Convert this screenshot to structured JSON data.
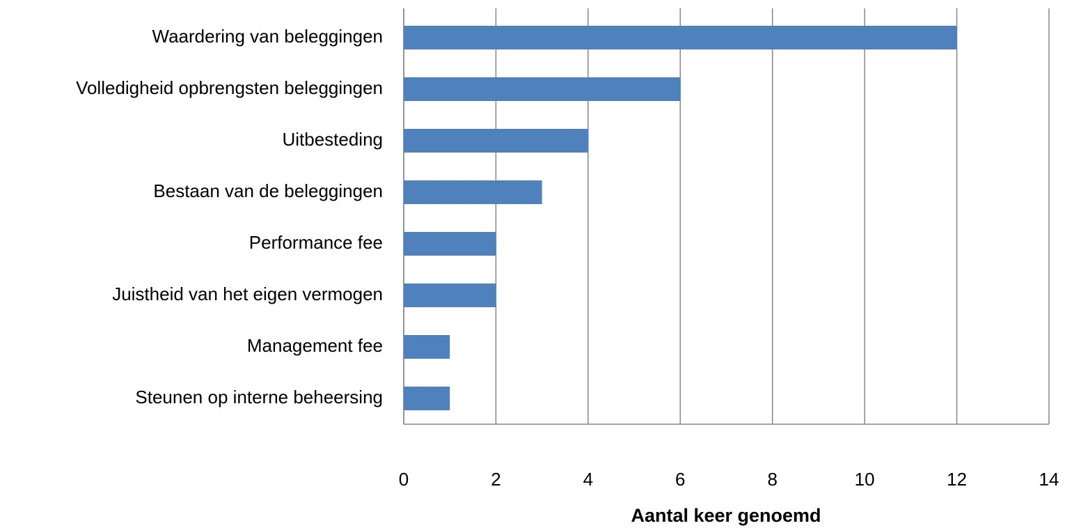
{
  "chart_data": {
    "type": "bar",
    "orientation": "horizontal",
    "x_label": "Aantal keer genoemd",
    "categories": [
      "Waardering van beleggingen",
      "Volledigheid opbrengsten beleggingen",
      "Uitbesteding",
      "Bestaan van de beleggingen",
      "Performance fee",
      "Juistheid van het eigen vermogen",
      "Management fee",
      "Steunen op interne beheersing"
    ],
    "values": [
      12,
      6,
      4,
      3,
      2,
      2,
      1,
      1
    ],
    "color": "#4f81bd",
    "xlim": [
      0,
      14
    ],
    "xticks": [
      0,
      2,
      4,
      6,
      8,
      10,
      12,
      14
    ],
    "grid": true
  }
}
